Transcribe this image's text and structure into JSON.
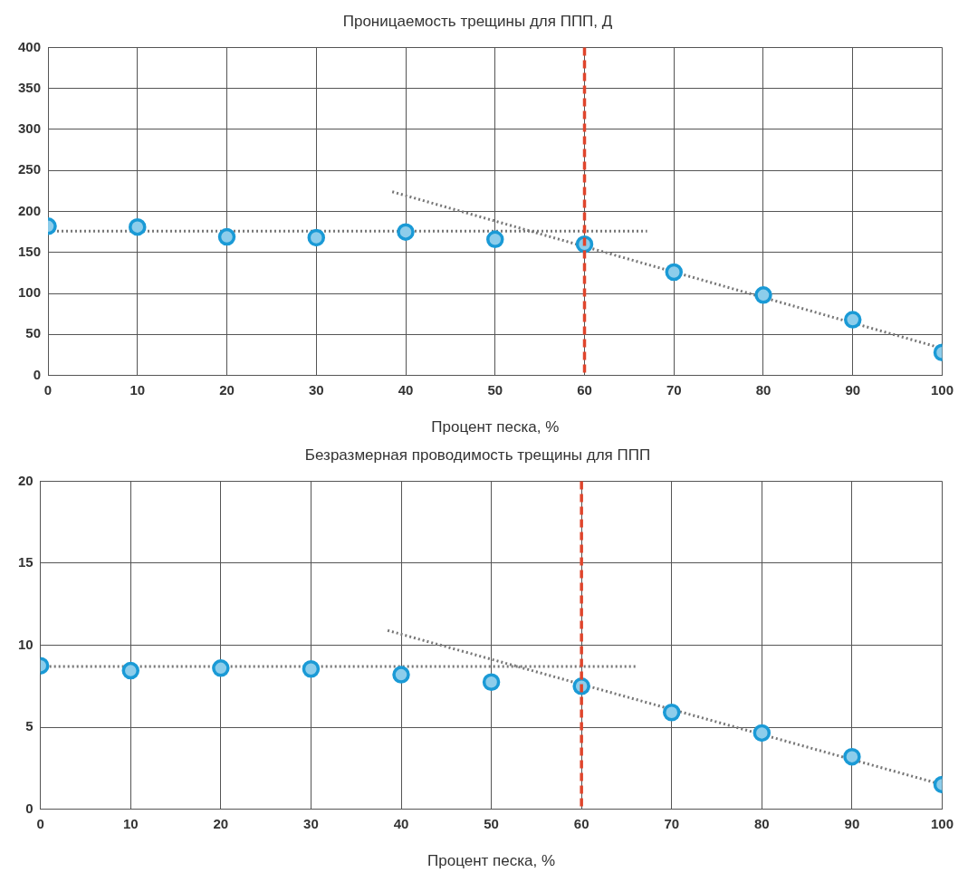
{
  "chart_data": [
    {
      "type": "scatter",
      "title": "Проницаемость трещины для ППП, Д",
      "xlabel": "Процент песка, %",
      "x": [
        0,
        10,
        20,
        30,
        40,
        50,
        60,
        70,
        80,
        90,
        100
      ],
      "xlim": [
        0,
        100
      ],
      "xticks": [
        0,
        10,
        20,
        30,
        40,
        50,
        60,
        70,
        80,
        90,
        100
      ],
      "ylim": [
        0,
        400
      ],
      "yticks": [
        0,
        50,
        100,
        150,
        200,
        250,
        300,
        350,
        400
      ],
      "grid": true,
      "legend": false,
      "marker": "circle",
      "series": [
        {
          "color": "#1a9ad6",
          "values": [
            182,
            181,
            169,
            168,
            175,
            166,
            160,
            126,
            98,
            68,
            28
          ]
        },
        {
          "type": "line",
          "x": [
            0,
            67
          ],
          "values": [
            176,
            176
          ],
          "color": "#777777",
          "line_style": "dotted",
          "marker": "none"
        },
        {
          "type": "line",
          "x": [
            38.5,
            100
          ],
          "values": [
            224,
            33
          ],
          "color": "#777777",
          "line_style": "dotted",
          "marker": "none"
        }
      ],
      "ref_lines": [
        {
          "axis": "x",
          "value": 60,
          "color": "#e0452c",
          "line_style": "dashed"
        }
      ]
    },
    {
      "type": "scatter",
      "title": "Безразмерная проводимость трещины для ППП",
      "xlabel": "Процент песка, %",
      "x": [
        0,
        10,
        20,
        30,
        40,
        50,
        60,
        70,
        80,
        90,
        100
      ],
      "xlim": [
        0,
        100
      ],
      "xticks": [
        0,
        10,
        20,
        30,
        40,
        50,
        60,
        70,
        80,
        90,
        100
      ],
      "ylim": [
        0,
        20
      ],
      "yticks": [
        0,
        5,
        10,
        15,
        20
      ],
      "grid": true,
      "legend": false,
      "marker": "circle",
      "series": [
        {
          "color": "#1a9ad6",
          "values": [
            8.75,
            8.45,
            8.6,
            8.55,
            8.2,
            7.75,
            7.5,
            5.9,
            4.65,
            3.2,
            1.5
          ]
        },
        {
          "type": "line",
          "x": [
            0,
            66
          ],
          "values": [
            8.7,
            8.7
          ],
          "color": "#777777",
          "line_style": "dotted",
          "marker": "none"
        },
        {
          "type": "line",
          "x": [
            38.5,
            100
          ],
          "values": [
            10.9,
            1.5
          ],
          "color": "#777777",
          "line_style": "dotted",
          "marker": "none"
        }
      ],
      "ref_lines": [
        {
          "axis": "x",
          "value": 60,
          "color": "#e0452c",
          "line_style": "dashed"
        }
      ]
    }
  ]
}
